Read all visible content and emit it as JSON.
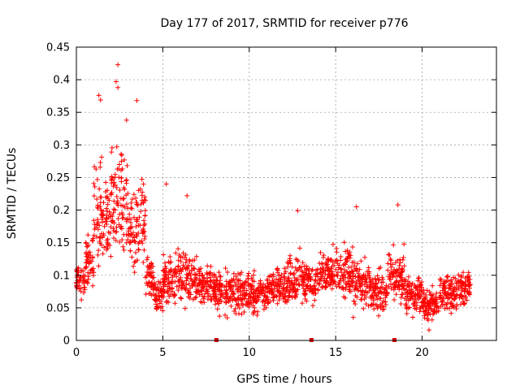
{
  "chart_data": {
    "type": "scatter",
    "title": "Day 177 of 2017, SRMTID for receiver p776",
    "xlabel": "GPS time / hours",
    "ylabel": "SRMTID / TECUs",
    "xlim": [
      0,
      24.3
    ],
    "ylim": [
      0,
      0.45
    ],
    "xticks": [
      0,
      5,
      10,
      15,
      20
    ],
    "yticks": [
      0,
      0.05,
      0.1,
      0.15,
      0.2,
      0.25,
      0.3,
      0.35,
      0.4,
      0.45
    ],
    "grid": true,
    "marker": "+",
    "color": "#ff0000",
    "baseline_markers_x": [
      8.1,
      13.6,
      18.4
    ],
    "notable_points": [
      {
        "x": 2.4,
        "y": 0.423
      },
      {
        "x": 2.3,
        "y": 0.397
      },
      {
        "x": 2.4,
        "y": 0.388
      },
      {
        "x": 3.5,
        "y": 0.368
      },
      {
        "x": 1.3,
        "y": 0.376
      },
      {
        "x": 1.4,
        "y": 0.369
      },
      {
        "x": 2.9,
        "y": 0.338
      },
      {
        "x": 5.2,
        "y": 0.24
      },
      {
        "x": 6.4,
        "y": 0.222
      },
      {
        "x": 12.8,
        "y": 0.199
      },
      {
        "x": 16.2,
        "y": 0.205
      },
      {
        "x": 18.6,
        "y": 0.208
      },
      {
        "x": 20.4,
        "y": 0.016
      }
    ],
    "envelope": [
      {
        "x0": 0.0,
        "x1": 0.5,
        "lo": 0.05,
        "hi": 0.13
      },
      {
        "x0": 0.5,
        "x1": 1.0,
        "lo": 0.05,
        "hi": 0.18
      },
      {
        "x0": 1.0,
        "x1": 1.5,
        "lo": 0.07,
        "hi": 0.3
      },
      {
        "x0": 1.5,
        "x1": 2.0,
        "lo": 0.09,
        "hi": 0.27
      },
      {
        "x0": 2.0,
        "x1": 2.5,
        "lo": 0.1,
        "hi": 0.34
      },
      {
        "x0": 2.5,
        "x1": 3.0,
        "lo": 0.1,
        "hi": 0.32
      },
      {
        "x0": 3.0,
        "x1": 3.5,
        "lo": 0.08,
        "hi": 0.26
      },
      {
        "x0": 3.5,
        "x1": 4.0,
        "lo": 0.08,
        "hi": 0.28
      },
      {
        "x0": 4.0,
        "x1": 4.5,
        "lo": 0.05,
        "hi": 0.15
      },
      {
        "x0": 4.5,
        "x1": 5.0,
        "lo": 0.04,
        "hi": 0.1
      },
      {
        "x0": 5.0,
        "x1": 6.0,
        "lo": 0.04,
        "hi": 0.15
      },
      {
        "x0": 6.0,
        "x1": 7.0,
        "lo": 0.03,
        "hi": 0.16
      },
      {
        "x0": 7.0,
        "x1": 8.0,
        "lo": 0.04,
        "hi": 0.13
      },
      {
        "x0": 8.0,
        "x1": 9.0,
        "lo": 0.03,
        "hi": 0.12
      },
      {
        "x0": 9.0,
        "x1": 10.0,
        "lo": 0.03,
        "hi": 0.12
      },
      {
        "x0": 10.0,
        "x1": 11.0,
        "lo": 0.03,
        "hi": 0.11
      },
      {
        "x0": 11.0,
        "x1": 12.0,
        "lo": 0.04,
        "hi": 0.12
      },
      {
        "x0": 12.0,
        "x1": 13.0,
        "lo": 0.04,
        "hi": 0.15
      },
      {
        "x0": 13.0,
        "x1": 14.0,
        "lo": 0.05,
        "hi": 0.13
      },
      {
        "x0": 14.0,
        "x1": 15.0,
        "lo": 0.05,
        "hi": 0.15
      },
      {
        "x0": 15.0,
        "x1": 16.0,
        "lo": 0.05,
        "hi": 0.16
      },
      {
        "x0": 16.0,
        "x1": 17.0,
        "lo": 0.03,
        "hi": 0.14
      },
      {
        "x0": 17.0,
        "x1": 18.0,
        "lo": 0.03,
        "hi": 0.12
      },
      {
        "x0": 18.0,
        "x1": 19.0,
        "lo": 0.04,
        "hi": 0.16
      },
      {
        "x0": 19.0,
        "x1": 20.0,
        "lo": 0.03,
        "hi": 0.11
      },
      {
        "x0": 20.0,
        "x1": 21.0,
        "lo": 0.02,
        "hi": 0.09
      },
      {
        "x0": 21.0,
        "x1": 22.0,
        "lo": 0.03,
        "hi": 0.12
      },
      {
        "x0": 22.0,
        "x1": 22.8,
        "lo": 0.04,
        "hi": 0.12
      }
    ]
  }
}
